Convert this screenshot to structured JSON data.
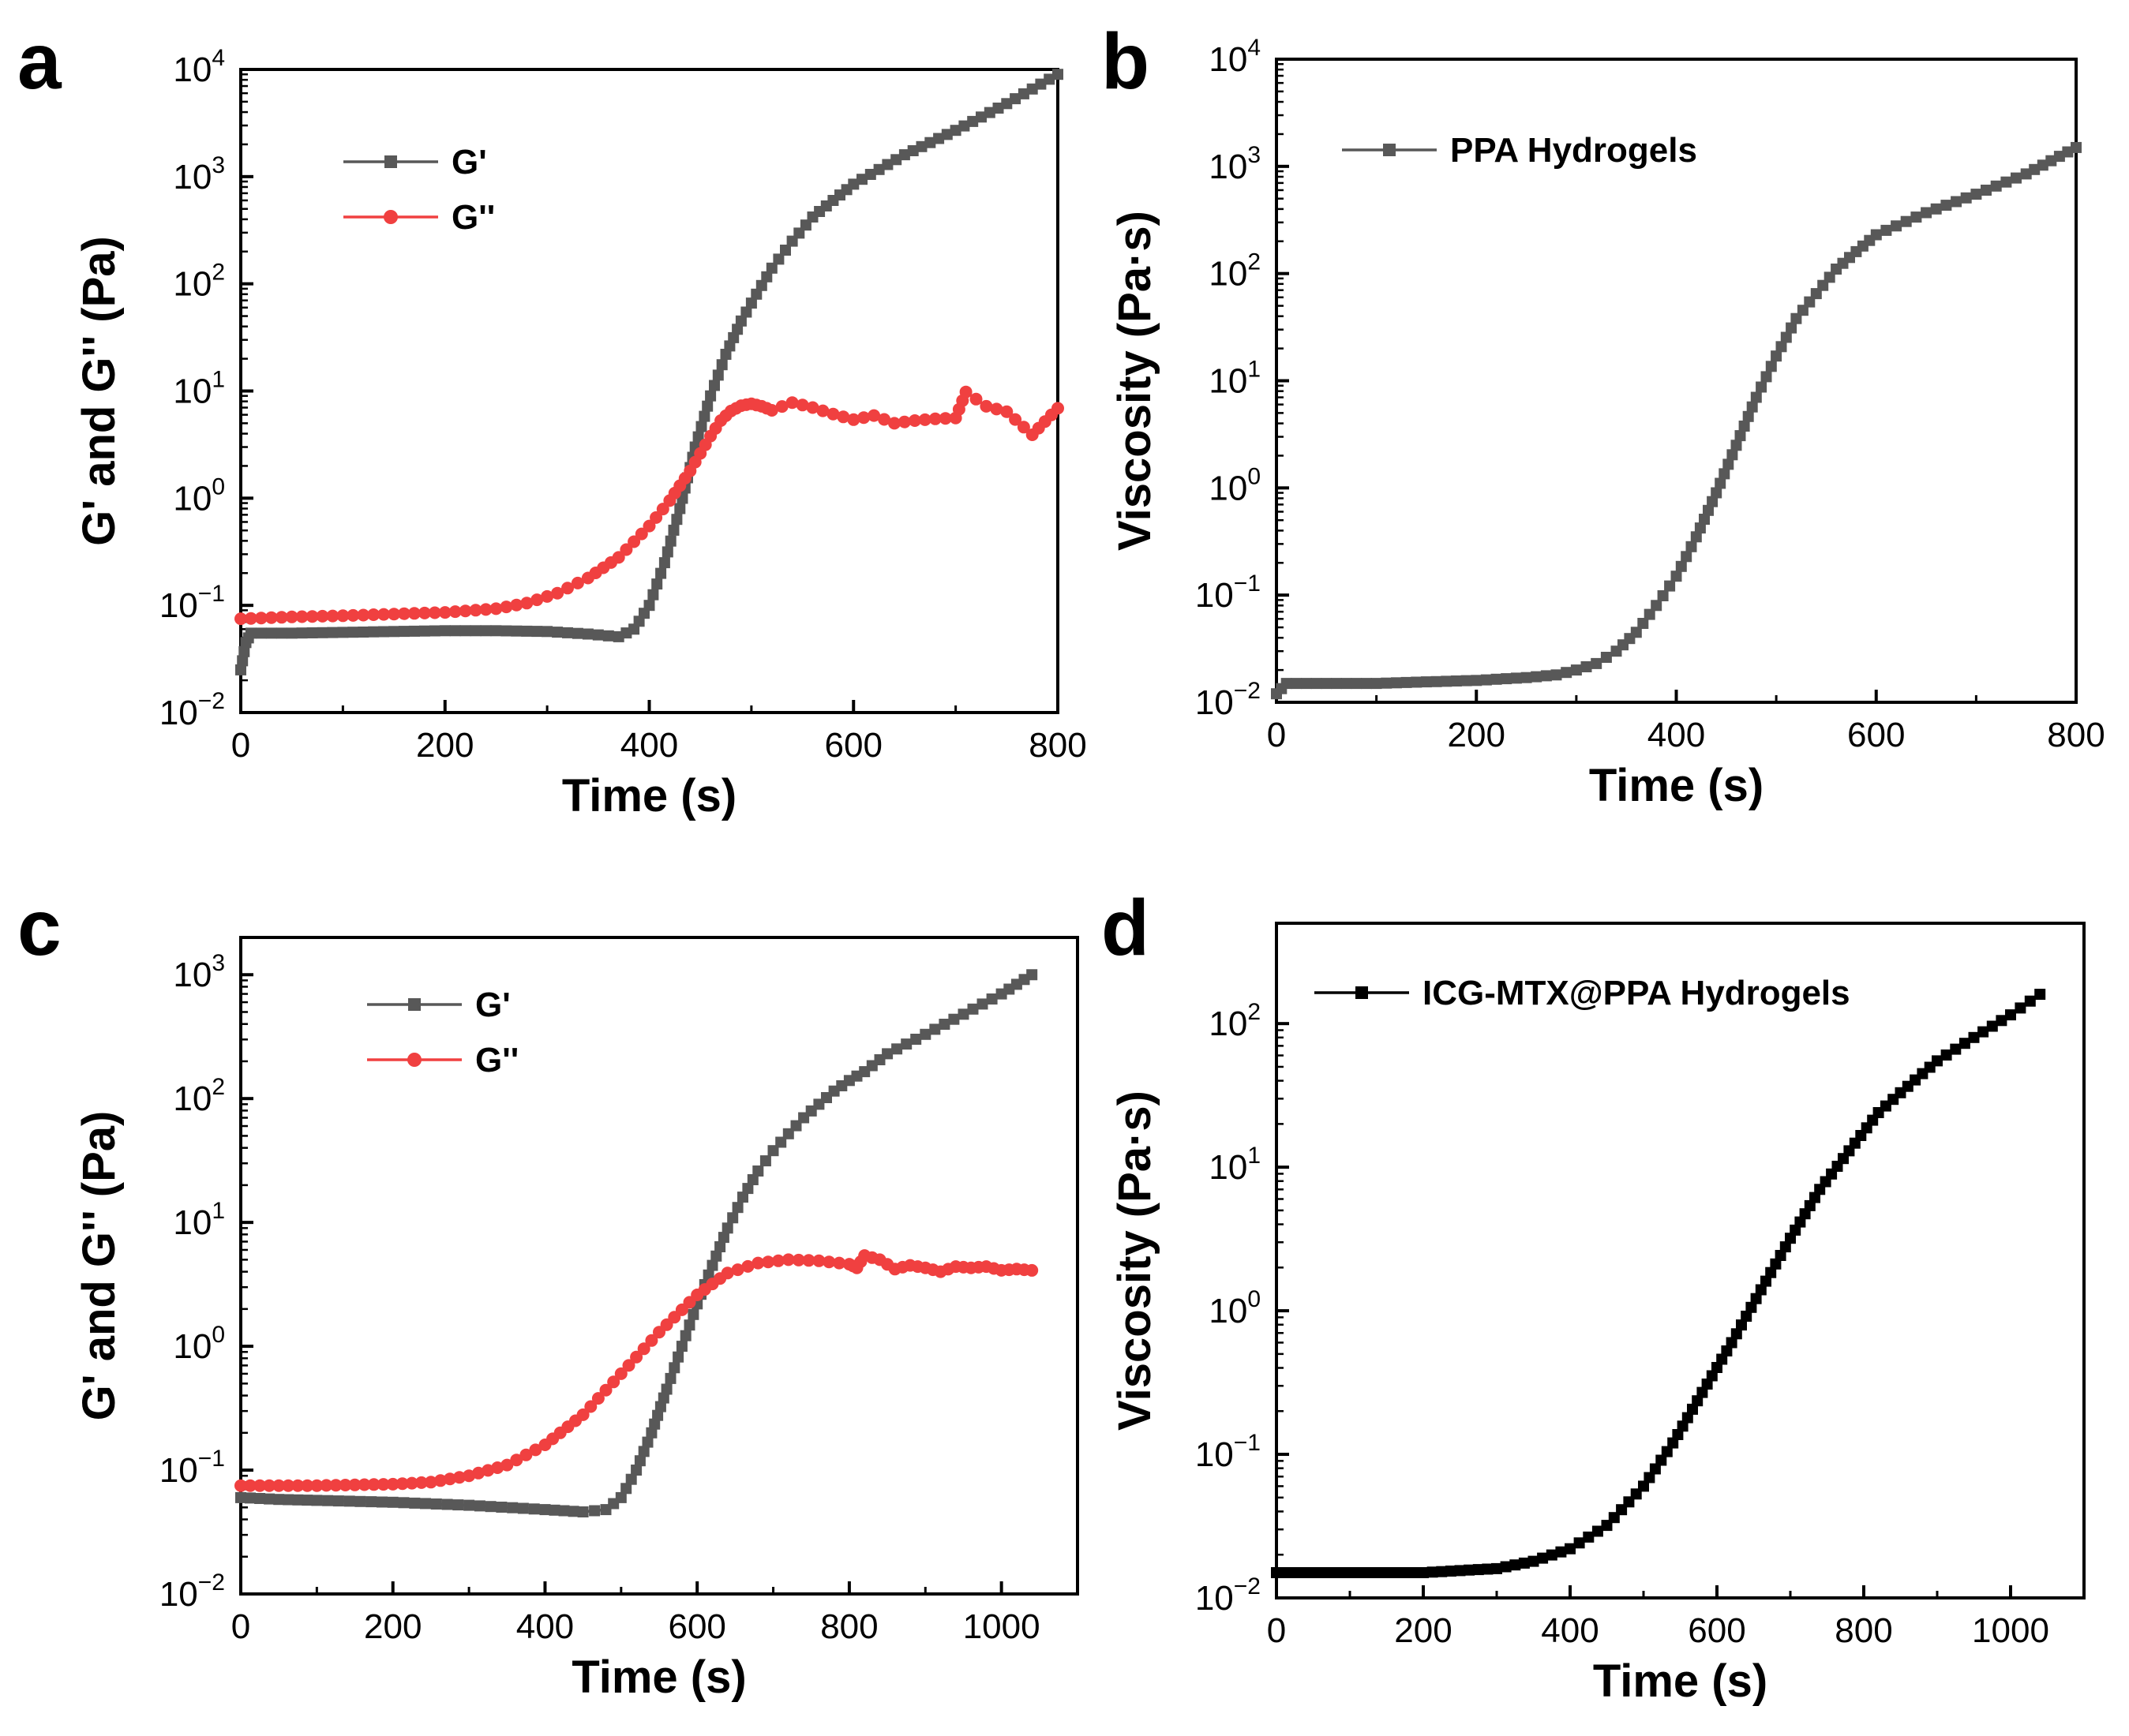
{
  "colors": {
    "gray": "#585858",
    "red": "#f04040",
    "black": "#000000"
  },
  "chart_data": [
    {
      "panel": "a",
      "type": "line",
      "yscale": "log",
      "xlabel": "Time (s)",
      "ylabel": "G' and G'' (Pa)",
      "xlim": [
        0,
        800
      ],
      "ylim": [
        0.01,
        10000
      ],
      "xticks": [
        0,
        200,
        400,
        600,
        800
      ],
      "yticks": [
        {
          "base": "10",
          "exp": "-2",
          "v": 0.01
        },
        {
          "base": "10",
          "exp": "-1",
          "v": 0.1
        },
        {
          "base": "10",
          "exp": "0",
          "v": 1
        },
        {
          "base": "10",
          "exp": "1",
          "v": 10
        },
        {
          "base": "10",
          "exp": "2",
          "v": 100
        },
        {
          "base": "10",
          "exp": "3",
          "v": 1000
        },
        {
          "base": "10",
          "exp": "4",
          "v": 10000
        }
      ],
      "legend": "top-left",
      "series": [
        {
          "name": "G'",
          "color": "gray",
          "marker": "square",
          "x": [
            0,
            5,
            10,
            50,
            100,
            150,
            200,
            250,
            300,
            340,
            370,
            385,
            400,
            415,
            430,
            445,
            460,
            475,
            490,
            505,
            520,
            540,
            560,
            580,
            600,
            650,
            700,
            750,
            800
          ],
          "y": [
            0.025,
            0.045,
            0.055,
            0.055,
            0.056,
            0.057,
            0.058,
            0.058,
            0.057,
            0.054,
            0.051,
            0.06,
            0.1,
            0.25,
            0.8,
            3,
            9,
            22,
            45,
            80,
            140,
            250,
            420,
            600,
            850,
            1600,
            2700,
            4800,
            9000
          ]
        },
        {
          "name": "G''",
          "color": "red",
          "marker": "circle",
          "x": [
            0,
            50,
            100,
            150,
            200,
            250,
            280,
            310,
            340,
            370,
            400,
            420,
            440,
            460,
            470,
            480,
            490,
            500,
            510,
            520,
            540,
            560,
            580,
            600,
            620,
            640,
            660,
            680,
            700,
            710,
            730,
            750,
            775,
            800
          ],
          "y": [
            0.075,
            0.078,
            0.08,
            0.083,
            0.086,
            0.093,
            0.105,
            0.13,
            0.18,
            0.28,
            0.55,
            0.95,
            1.8,
            3.8,
            5.3,
            6.5,
            7.3,
            7.6,
            7.2,
            6.6,
            7.8,
            7.0,
            6.1,
            5.4,
            5.9,
            5.0,
            5.3,
            5.5,
            5.6,
            9.8,
            7.2,
            6.4,
            3.9,
            6.9
          ]
        }
      ]
    },
    {
      "panel": "b",
      "type": "line",
      "yscale": "log",
      "xlabel": "Time (s)",
      "ylabel": "Viscosity (Pa·s)",
      "xlim": [
        0,
        800
      ],
      "ylim": [
        0.01,
        10000
      ],
      "xticks": [
        0,
        200,
        400,
        600,
        800
      ],
      "yticks": [
        {
          "base": "10",
          "exp": "-2",
          "v": 0.01
        },
        {
          "base": "10",
          "exp": "-1",
          "v": 0.1
        },
        {
          "base": "10",
          "exp": "0",
          "v": 1
        },
        {
          "base": "10",
          "exp": "1",
          "v": 10
        },
        {
          "base": "10",
          "exp": "2",
          "v": 100
        },
        {
          "base": "10",
          "exp": "3",
          "v": 1000
        },
        {
          "base": "10",
          "exp": "4",
          "v": 10000
        }
      ],
      "legend": "top-left",
      "series": [
        {
          "name": "PPA Hydrogels",
          "color": "gray",
          "marker": "square",
          "x": [
            0,
            10,
            50,
            100,
            150,
            200,
            250,
            280,
            300,
            320,
            340,
            360,
            380,
            400,
            420,
            440,
            460,
            480,
            500,
            520,
            540,
            560,
            580,
            600,
            650,
            700,
            750,
            800
          ],
          "y": [
            0.012,
            0.015,
            0.015,
            0.015,
            0.0155,
            0.016,
            0.017,
            0.018,
            0.02,
            0.023,
            0.03,
            0.045,
            0.08,
            0.15,
            0.35,
            0.9,
            2.5,
            7,
            17,
            38,
            65,
            110,
            160,
            230,
            370,
            550,
            850,
            1500
          ]
        }
      ]
    },
    {
      "panel": "c",
      "type": "line",
      "yscale": "log",
      "xlabel": "Time (s)",
      "ylabel": "G' and G'' (Pa)",
      "xlim": [
        0,
        1100
      ],
      "ylim": [
        0.01,
        2000
      ],
      "xticks": [
        0,
        200,
        400,
        600,
        800,
        1000
      ],
      "yticks": [
        {
          "base": "10",
          "exp": "-2",
          "v": 0.01
        },
        {
          "base": "10",
          "exp": "-1",
          "v": 0.1
        },
        {
          "base": "10",
          "exp": "0",
          "v": 1
        },
        {
          "base": "10",
          "exp": "1",
          "v": 10
        },
        {
          "base": "10",
          "exp": "2",
          "v": 100
        },
        {
          "base": "10",
          "exp": "3",
          "v": 1000
        }
      ],
      "legend": "top-left",
      "series": [
        {
          "name": "G'",
          "color": "gray",
          "marker": "square",
          "x": [
            0,
            50,
            100,
            200,
            300,
            400,
            450,
            480,
            500,
            520,
            540,
            560,
            580,
            600,
            620,
            640,
            660,
            680,
            700,
            720,
            740,
            760,
            780,
            800,
            820,
            850,
            900,
            950,
            1000,
            1040
          ],
          "y": [
            0.06,
            0.058,
            0.057,
            0.055,
            0.052,
            0.048,
            0.046,
            0.048,
            0.06,
            0.1,
            0.2,
            0.45,
            1,
            2.2,
            4.5,
            9,
            16,
            26,
            38,
            52,
            70,
            90,
            115,
            140,
            165,
            230,
            330,
            480,
            700,
            1000
          ]
        },
        {
          "name": "G''",
          "color": "red",
          "marker": "circle",
          "x": [
            0,
            50,
            100,
            150,
            200,
            250,
            300,
            350,
            400,
            450,
            500,
            550,
            600,
            640,
            680,
            720,
            760,
            800,
            810,
            820,
            840,
            860,
            880,
            900,
            920,
            940,
            960,
            980,
            1000,
            1020,
            1040
          ],
          "y": [
            0.075,
            0.075,
            0.075,
            0.076,
            0.077,
            0.08,
            0.09,
            0.11,
            0.16,
            0.28,
            0.6,
            1.3,
            2.6,
            3.9,
            4.7,
            5.0,
            4.9,
            4.6,
            4.3,
            5.4,
            5.0,
            4.2,
            4.5,
            4.3,
            4.0,
            4.4,
            4.3,
            4.4,
            4.1,
            4.2,
            4.1
          ]
        }
      ]
    },
    {
      "panel": "d",
      "type": "line",
      "yscale": "log",
      "xlabel": "Time (s)",
      "ylabel": "Viscosity (Pa·s)",
      "xlim": [
        0,
        1100
      ],
      "ylim": [
        0.01,
        500
      ],
      "xticks": [
        0,
        200,
        400,
        600,
        800,
        1000
      ],
      "yticks": [
        {
          "base": "10",
          "exp": "-2",
          "v": 0.01
        },
        {
          "base": "10",
          "exp": "-1",
          "v": 0.1
        },
        {
          "base": "10",
          "exp": "0",
          "v": 1
        },
        {
          "base": "10",
          "exp": "1",
          "v": 10
        },
        {
          "base": "10",
          "exp": "2",
          "v": 100
        }
      ],
      "legend": "top-left",
      "series": [
        {
          "name": "ICG-MTX@PPA Hydrogels",
          "color": "black",
          "marker": "square",
          "x": [
            0,
            50,
            100,
            150,
            200,
            250,
            300,
            350,
            400,
            450,
            500,
            540,
            580,
            620,
            660,
            700,
            740,
            780,
            820,
            850,
            900,
            950,
            1000,
            1040
          ],
          "y": [
            0.015,
            0.015,
            0.015,
            0.015,
            0.015,
            0.0155,
            0.016,
            0.018,
            0.022,
            0.032,
            0.06,
            0.12,
            0.27,
            0.6,
            1.4,
            3.2,
            7,
            13,
            24,
            33,
            55,
            80,
            115,
            160
          ]
        }
      ]
    }
  ]
}
